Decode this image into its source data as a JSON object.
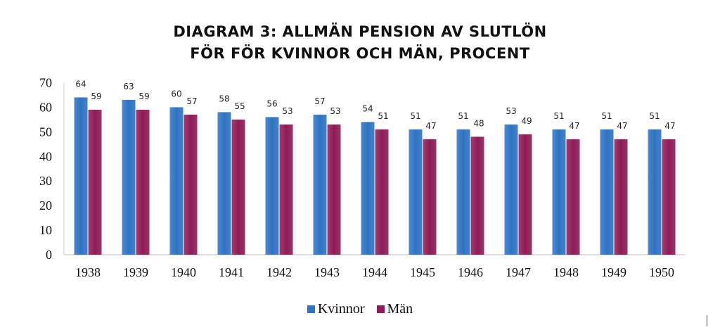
{
  "title_lines": [
    "DIAGRAM 3: ALLMÄN PENSION AV SLUTLÖN",
    "FÖR FÖR KVINNOR OCH MÄN, PROCENT"
  ],
  "colors": {
    "kvinnor": "#2e74c4",
    "man": "#8e1c56"
  },
  "chart_data": {
    "type": "bar",
    "title": "DIAGRAM 3: ALLMÄN PENSION AV SLUTLÖN FÖR FÖR KVINNOR OCH MÄN, PROCENT",
    "categories": [
      "1938",
      "1939",
      "1940",
      "1941",
      "1942",
      "1943",
      "1944",
      "1945",
      "1946",
      "1947",
      "1948",
      "1949",
      "1950"
    ],
    "series": [
      {
        "name": "Kvinnor",
        "values": [
          64,
          63,
          60,
          58,
          56,
          57,
          54,
          51,
          51,
          53,
          51,
          51,
          51
        ]
      },
      {
        "name": "Män",
        "values": [
          59,
          59,
          57,
          55,
          53,
          53,
          51,
          47,
          48,
          49,
          47,
          47,
          47
        ]
      }
    ],
    "ylim": [
      0,
      70
    ],
    "yticks": [
      "0",
      "10",
      "20",
      "30",
      "40",
      "50",
      "60",
      "70"
    ],
    "grid": false,
    "legend_position": "bottom"
  }
}
